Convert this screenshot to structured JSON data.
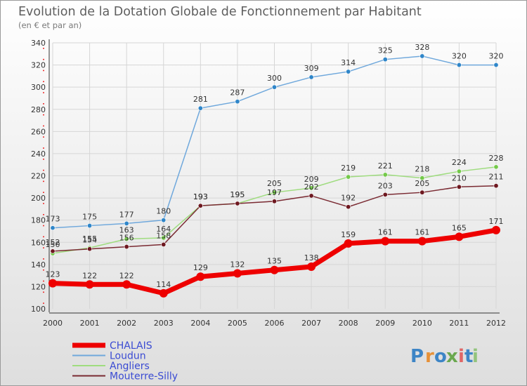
{
  "chart_data": {
    "type": "line",
    "title": "Evolution de la Dotation Globale de Fonctionnement par Habitant",
    "subtitle": "(en € et par an)",
    "x": [
      "2000",
      "2001",
      "2002",
      "2003",
      "2004",
      "2005",
      "2006",
      "2007",
      "2008",
      "2009",
      "2010",
      "2011",
      "2012"
    ],
    "ylim": [
      100,
      340
    ],
    "yticks": [
      "100",
      "120",
      "140",
      "160",
      "180",
      "200",
      "220",
      "240",
      "260",
      "280",
      "300",
      "320",
      "340"
    ],
    "grid": true,
    "legend": "bottom-left",
    "series": [
      {
        "name": "Loudun",
        "color": "#6fa8dc",
        "marker": "#2f86c9",
        "values": [
          173,
          175,
          177,
          180,
          281,
          287,
          300,
          309,
          314,
          325,
          328,
          320,
          320
        ]
      },
      {
        "name": "Angliers",
        "color": "#9fdc7f",
        "marker": "#74c94a",
        "values": [
          150,
          155,
          163,
          164,
          193,
          195,
          205,
          209,
          219,
          221,
          218,
          224,
          228
        ]
      },
      {
        "name": "Mouterre-Silly",
        "color": "#7a2a32",
        "marker": "#6e1820",
        "values": [
          152,
          154,
          156,
          158,
          193,
          195,
          197,
          202,
          192,
          203,
          205,
          210,
          211
        ]
      },
      {
        "name": "CHALAIS",
        "color": "#ee0000",
        "marker": "#ee0000",
        "values": [
          123,
          122,
          122,
          114,
          129,
          132,
          135,
          138,
          159,
          161,
          161,
          165,
          171
        ]
      }
    ],
    "legend_order": [
      "CHALAIS",
      "Loudun",
      "Angliers",
      "Mouterre-Silly"
    ]
  },
  "logo": {
    "text": "Proxiti",
    "letters": [
      "P",
      "r",
      "o",
      "x",
      "i",
      "t",
      "i"
    ],
    "colors": [
      "#3d85c6",
      "#e69138",
      "#3d85c6",
      "#6aa84f",
      "#e06666",
      "#3d85c6",
      "#93c47d"
    ]
  }
}
